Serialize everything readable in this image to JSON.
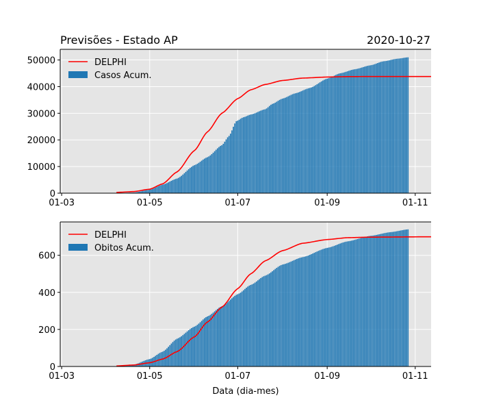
{
  "figure": {
    "title_left": "Previsões - Estado AP",
    "title_right": "2020-10-27",
    "xlabel": "Data (dia-mes)",
    "colors": {
      "bars": "#1f77b4",
      "model": "#ff0000",
      "plot_background": "#e5e5e5",
      "grid": "#ffffff"
    }
  },
  "chart_data": [
    {
      "type": "bar",
      "subplot": "top",
      "x_axis": {
        "type": "date",
        "range": [
          "2020-02-29",
          "2020-11-12"
        ],
        "tick_labels": [
          "01-03",
          "01-05",
          "01-07",
          "01-09",
          "01-11"
        ],
        "tick_dates": [
          "2020-03-01",
          "2020-05-01",
          "2020-07-01",
          "2020-09-01",
          "2020-11-01"
        ]
      },
      "y_axis": {
        "range": [
          0,
          54000
        ],
        "ticks": [
          0,
          10000,
          20000,
          30000,
          40000,
          50000
        ]
      },
      "grid": true,
      "legend": {
        "position": "top-left",
        "entries": [
          "DELPHI",
          "Casos Acum."
        ]
      },
      "series": [
        {
          "name": "Casos Acum.",
          "kind": "bar",
          "date_range": [
            "2020-04-08",
            "2020-10-27"
          ],
          "points": [
            [
              "2020-04-08",
              40
            ],
            [
              "2020-04-20",
              250
            ],
            [
              "2020-05-01",
              1300
            ],
            [
              "2020-05-10",
              3200
            ],
            [
              "2020-05-20",
              5500
            ],
            [
              "2020-06-01",
              10500
            ],
            [
              "2020-06-10",
              13500
            ],
            [
              "2020-06-20",
              18000
            ],
            [
              "2020-06-25",
              21500
            ],
            [
              "2020-06-30",
              27000
            ],
            [
              "2020-07-05",
              28500
            ],
            [
              "2020-07-10",
              29500
            ],
            [
              "2020-07-20",
              31500
            ],
            [
              "2020-07-25",
              33500
            ],
            [
              "2020-08-01",
              35500
            ],
            [
              "2020-08-10",
              37500
            ],
            [
              "2020-08-20",
              39500
            ],
            [
              "2020-09-01",
              43000
            ],
            [
              "2020-09-10",
              45000
            ],
            [
              "2020-09-20",
              46500
            ],
            [
              "2020-10-01",
              48000
            ],
            [
              "2020-10-10",
              49500
            ],
            [
              "2020-10-20",
              50500
            ],
            [
              "2020-10-27",
              51000
            ]
          ]
        },
        {
          "name": "DELPHI",
          "kind": "line",
          "date_range": [
            "2020-04-08",
            "2020-11-12"
          ],
          "points": [
            [
              "2020-04-08",
              300
            ],
            [
              "2020-04-20",
              600
            ],
            [
              "2020-05-01",
              1500
            ],
            [
              "2020-05-10",
              3500
            ],
            [
              "2020-05-20",
              8000
            ],
            [
              "2020-06-01",
              16000
            ],
            [
              "2020-06-10",
              23000
            ],
            [
              "2020-06-20",
              30000
            ],
            [
              "2020-07-01",
              35500
            ],
            [
              "2020-07-10",
              38800
            ],
            [
              "2020-07-20",
              40800
            ],
            [
              "2020-08-01",
              42300
            ],
            [
              "2020-08-15",
              43200
            ],
            [
              "2020-09-01",
              43600
            ],
            [
              "2020-09-15",
              43750
            ],
            [
              "2020-10-01",
              43800
            ],
            [
              "2020-11-12",
              43800
            ]
          ]
        }
      ]
    },
    {
      "type": "bar",
      "subplot": "bottom",
      "x_axis": {
        "type": "date",
        "range": [
          "2020-02-29",
          "2020-11-12"
        ],
        "tick_labels": [
          "01-03",
          "01-05",
          "01-07",
          "01-09",
          "01-11"
        ],
        "tick_dates": [
          "2020-03-01",
          "2020-05-01",
          "2020-07-01",
          "2020-09-01",
          "2020-11-01"
        ]
      },
      "y_axis": {
        "range": [
          0,
          780
        ],
        "ticks": [
          0,
          200,
          400,
          600
        ]
      },
      "grid": true,
      "legend": {
        "position": "top-left",
        "entries": [
          "DELPHI",
          "Obitos Acum."
        ]
      },
      "series": [
        {
          "name": "Obitos Acum.",
          "kind": "bar",
          "date_range": [
            "2020-04-08",
            "2020-10-27"
          ],
          "points": [
            [
              "2020-04-08",
              2
            ],
            [
              "2020-04-20",
              10
            ],
            [
              "2020-05-01",
              40
            ],
            [
              "2020-05-10",
              80
            ],
            [
              "2020-05-20",
              150
            ],
            [
              "2020-06-01",
              215
            ],
            [
              "2020-06-10",
              270
            ],
            [
              "2020-06-20",
              325
            ],
            [
              "2020-07-01",
              390
            ],
            [
              "2020-07-10",
              440
            ],
            [
              "2020-07-20",
              490
            ],
            [
              "2020-08-01",
              550
            ],
            [
              "2020-08-15",
              590
            ],
            [
              "2020-09-01",
              640
            ],
            [
              "2020-09-15",
              675
            ],
            [
              "2020-10-01",
              705
            ],
            [
              "2020-10-15",
              725
            ],
            [
              "2020-10-27",
              740
            ]
          ]
        },
        {
          "name": "DELPHI",
          "kind": "line",
          "date_range": [
            "2020-04-08",
            "2020-11-12"
          ],
          "points": [
            [
              "2020-04-08",
              3
            ],
            [
              "2020-04-20",
              8
            ],
            [
              "2020-05-01",
              20
            ],
            [
              "2020-05-10",
              40
            ],
            [
              "2020-05-20",
              80
            ],
            [
              "2020-06-01",
              160
            ],
            [
              "2020-06-10",
              240
            ],
            [
              "2020-06-20",
              320
            ],
            [
              "2020-07-01",
              420
            ],
            [
              "2020-07-10",
              500
            ],
            [
              "2020-07-20",
              570
            ],
            [
              "2020-08-01",
              625
            ],
            [
              "2020-08-15",
              665
            ],
            [
              "2020-09-01",
              685
            ],
            [
              "2020-09-15",
              695
            ],
            [
              "2020-10-01",
              698
            ],
            [
              "2020-11-12",
              700
            ]
          ]
        }
      ]
    }
  ]
}
